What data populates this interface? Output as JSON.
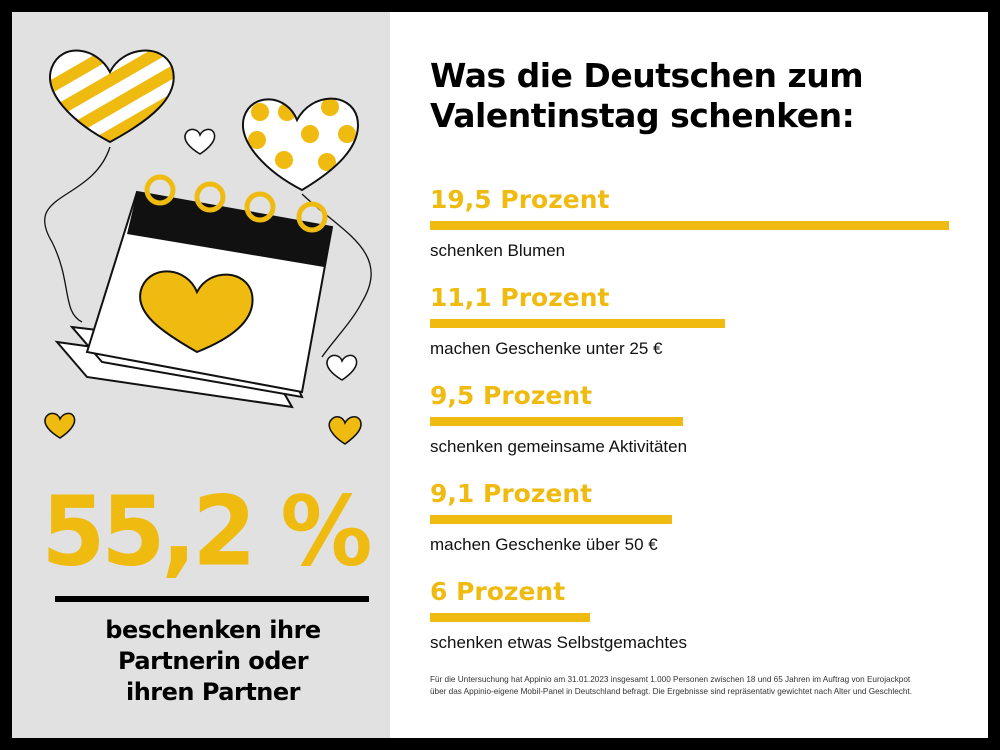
{
  "title_lines": [
    "Was die Deutschen zum",
    "Valentinstag schenken:"
  ],
  "highlight": {
    "value": "55,2 %",
    "text_lines": [
      "beschenken ihre",
      "Partnerin oder",
      "ihren Partner"
    ]
  },
  "colors": {
    "accent": "#efbb10",
    "panel": "#e1e1e1",
    "frame": "#000000"
  },
  "chart_data": {
    "type": "bar",
    "orientation": "horizontal",
    "categories": [
      "schenken Blumen",
      "machen Geschenke unter 25 €",
      "schenken gemeinsame Aktivitäten",
      "machen Geschenke über 50 €",
      "schenken etwas Selbstgemachtes"
    ],
    "value_labels": [
      "19,5 Prozent",
      "11,1 Prozent",
      "9,5 Prozent",
      "9,1 Prozent",
      "6 Prozent"
    ],
    "values": [
      19.5,
      11.1,
      9.5,
      9.1,
      6
    ],
    "unit": "Prozent",
    "grid": false
  },
  "footnote_lines": [
    "Für die Untersuchung hat Appinio am 31.01.2023 insgesamt 1.000 Personen zwischen 18 und 65 Jahren im Auftrag von Eurojackpot",
    "über das Appinio-eigene Mobil-Panel in Deutschland befragt. Die Ergebnisse sind repräsentativ gewichtet nach Alter und Geschlecht."
  ],
  "icons": [
    "striped-heart-balloon-icon",
    "dotted-heart-balloon-icon",
    "calendar-heart-icon",
    "small-heart-icon"
  ]
}
